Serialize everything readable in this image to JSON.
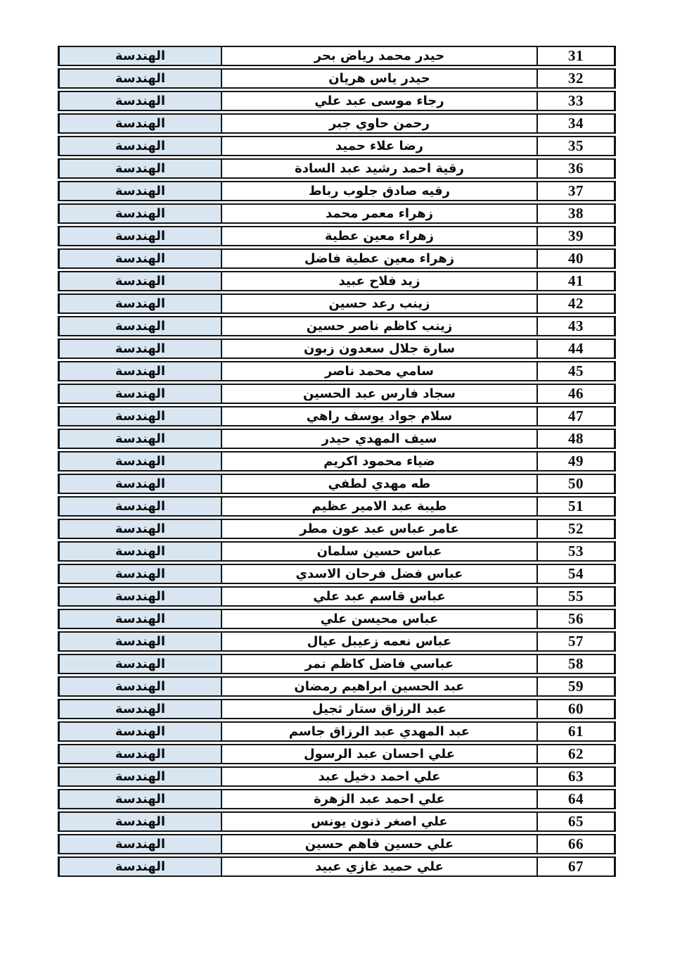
{
  "document": {
    "type": "scanned-student-list",
    "department_label": "الهندسة",
    "colors": {
      "department_cell_bg": "#d9e6f2",
      "border": "#141414",
      "text": "#0c0c0c",
      "page_bg": "#ffffff"
    }
  },
  "table": {
    "columns": [
      "department",
      "name",
      "number"
    ],
    "rows": [
      {
        "number": "31",
        "name": "حيدر محمد رياض بحر",
        "department": "الهندسة"
      },
      {
        "number": "32",
        "name": "حيدر ياس هريان",
        "department": "الهندسة"
      },
      {
        "number": "33",
        "name": "رجاء موسى عبد علي",
        "department": "الهندسة"
      },
      {
        "number": "34",
        "name": "رحمن حاوي جبر",
        "department": "الهندسة"
      },
      {
        "number": "35",
        "name": "رضا علاء حميد",
        "department": "الهندسة"
      },
      {
        "number": "36",
        "name": "رقية احمد رشيد عبد السادة",
        "department": "الهندسة"
      },
      {
        "number": "37",
        "name": "رقيه صادق جلوب رباط",
        "department": "الهندسة"
      },
      {
        "number": "38",
        "name": "زهراء معمر محمد",
        "department": "الهندسة"
      },
      {
        "number": "39",
        "name": "زهراء معين عطية",
        "department": "الهندسة"
      },
      {
        "number": "40",
        "name": "زهراء معين عطية فاضل",
        "department": "الهندسة"
      },
      {
        "number": "41",
        "name": "زيد فلاح عبيد",
        "department": "الهندسة"
      },
      {
        "number": "42",
        "name": "زينب رعد حسين",
        "department": "الهندسة"
      },
      {
        "number": "43",
        "name": "زينب كاظم ناصر حسين",
        "department": "الهندسة"
      },
      {
        "number": "44",
        "name": "سارة جلال سعدون زبون",
        "department": "الهندسة"
      },
      {
        "number": "45",
        "name": "سامي محمد ناصر",
        "department": "الهندسة"
      },
      {
        "number": "46",
        "name": "سجاد فارس عبد الحسين",
        "department": "الهندسة"
      },
      {
        "number": "47",
        "name": "سلام جواد يوسف راهي",
        "department": "الهندسة"
      },
      {
        "number": "48",
        "name": "سيف المهدي حيدر",
        "department": "الهندسة"
      },
      {
        "number": "49",
        "name": "ضياء محمود اكريم",
        "department": "الهندسة"
      },
      {
        "number": "50",
        "name": "طه مهدي لطفي",
        "department": "الهندسة"
      },
      {
        "number": "51",
        "name": "طيبة عبد الامير عظيم",
        "department": "الهندسة"
      },
      {
        "number": "52",
        "name": "عامر عباس عبد عون مطر",
        "department": "الهندسة"
      },
      {
        "number": "53",
        "name": "عباس حسين سلمان",
        "department": "الهندسة"
      },
      {
        "number": "54",
        "name": "عباس فضل فرحان الاسدي",
        "department": "الهندسة"
      },
      {
        "number": "55",
        "name": "عباس قاسم عبد علي",
        "department": "الهندسة"
      },
      {
        "number": "56",
        "name": "عباس محيسن علي",
        "department": "الهندسة"
      },
      {
        "number": "57",
        "name": "عباس نعمه زعيبل عيال",
        "department": "الهندسة"
      },
      {
        "number": "58",
        "name": "عباسي فاضل كاظم نمر",
        "department": "الهندسة"
      },
      {
        "number": "59",
        "name": "عبد الحسين ابراهيم رمضان",
        "department": "الهندسة"
      },
      {
        "number": "60",
        "name": "عبد الرزاق ستار ثجيل",
        "department": "الهندسة"
      },
      {
        "number": "61",
        "name": "عبد المهدي عبد الرزاق جاسم",
        "department": "الهندسة"
      },
      {
        "number": "62",
        "name": "علي احسان عبد الرسول",
        "department": "الهندسة"
      },
      {
        "number": "63",
        "name": "علي احمد دخيل عبد",
        "department": "الهندسة"
      },
      {
        "number": "64",
        "name": "علي احمد عبد الزهرة",
        "department": "الهندسة"
      },
      {
        "number": "65",
        "name": "علي اصغر ذنون يونس",
        "department": "الهندسة"
      },
      {
        "number": "66",
        "name": "علي حسين فاهم حسين",
        "department": "الهندسة"
      },
      {
        "number": "67",
        "name": "علي حميد غازي عبيد",
        "department": "الهندسة"
      }
    ]
  }
}
